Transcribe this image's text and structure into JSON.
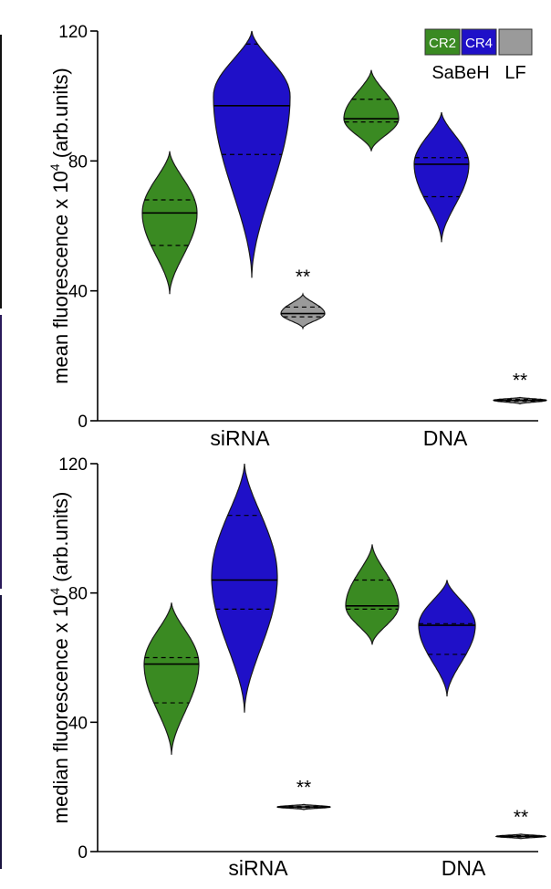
{
  "colors": {
    "CR2": "#3a8a22",
    "CR4": "#1f10c8",
    "LF": "#9a9a9a",
    "edge": "#1a1a1a"
  },
  "legend": {
    "items": [
      {
        "key": "CR2",
        "label": "CR2"
      },
      {
        "key": "CR4",
        "label": "CR4"
      },
      {
        "key": "LF",
        "label": ""
      }
    ],
    "group_label": "SaBeH",
    "lf_label": "LF",
    "placement": "top-right"
  },
  "chart_data": [
    {
      "type": "violin",
      "ylabel_pre": "mean fluorescence x 10",
      "ylabel_sup": "4",
      "ylabel_post": " (arb.units)",
      "ylim": [
        0,
        120
      ],
      "yticks": [
        "0",
        "40",
        "80",
        "120"
      ],
      "categories": [
        "siRNA",
        "DNA"
      ],
      "violins": [
        {
          "category": "siRNA",
          "series": "CR2",
          "min": 39,
          "max": 83,
          "peak": 64,
          "median": 64,
          "q1": 54,
          "q3": 68,
          "sig": ""
        },
        {
          "category": "siRNA",
          "series": "CR4",
          "min": 44,
          "max": 120,
          "peak": 100,
          "median": 97,
          "q1": 82,
          "q3": 116,
          "sig": ""
        },
        {
          "category": "siRNA",
          "series": "LF",
          "min": 28.5,
          "max": 39,
          "peak": 33,
          "median": 33,
          "q1": 32,
          "q3": 35,
          "sig": "**"
        },
        {
          "category": "DNA",
          "series": "CR2",
          "min": 83,
          "max": 108,
          "peak": 93,
          "median": 93,
          "q1": 92,
          "q3": 99,
          "sig": ""
        },
        {
          "category": "DNA",
          "series": "CR4",
          "min": 55,
          "max": 95,
          "peak": 79,
          "median": 79,
          "q1": 69,
          "q3": 81,
          "sig": ""
        },
        {
          "category": "DNA",
          "series": "LF",
          "min": 5.2,
          "max": 7.2,
          "peak": 6.3,
          "median": 6.3,
          "q1": 6.0,
          "q3": 6.6,
          "sig": "**"
        }
      ]
    },
    {
      "type": "violin",
      "ylabel_pre": "median fluorescence x 10",
      "ylabel_sup": "4",
      "ylabel_post": " (arb.units)",
      "ylim": [
        0,
        120
      ],
      "yticks": [
        "0",
        "40",
        "80",
        "120"
      ],
      "categories": [
        "siRNA",
        "DNA"
      ],
      "violins": [
        {
          "category": "siRNA",
          "series": "CR2",
          "min": 30,
          "max": 77,
          "peak": 58,
          "median": 58,
          "q1": 46,
          "q3": 60,
          "sig": ""
        },
        {
          "category": "siRNA",
          "series": "CR4",
          "min": 43,
          "max": 120,
          "peak": 85,
          "median": 84,
          "q1": 75,
          "q3": 104,
          "sig": ""
        },
        {
          "category": "siRNA",
          "series": "LF",
          "min": 13.0,
          "max": 14.6,
          "peak": 13.8,
          "median": 13.8,
          "q1": 13.6,
          "q3": 14.0,
          "sig": "**"
        },
        {
          "category": "DNA",
          "series": "CR2",
          "min": 64,
          "max": 95,
          "peak": 76,
          "median": 76,
          "q1": 75,
          "q3": 84,
          "sig": ""
        },
        {
          "category": "DNA",
          "series": "CR4",
          "min": 48,
          "max": 84,
          "peak": 70,
          "median": 70,
          "q1": 61,
          "q3": 70.5,
          "sig": ""
        },
        {
          "category": "DNA",
          "series": "LF",
          "min": 4.0,
          "max": 5.4,
          "peak": 4.7,
          "median": 4.7,
          "q1": 4.5,
          "q3": 4.9,
          "sig": "**"
        }
      ]
    }
  ]
}
